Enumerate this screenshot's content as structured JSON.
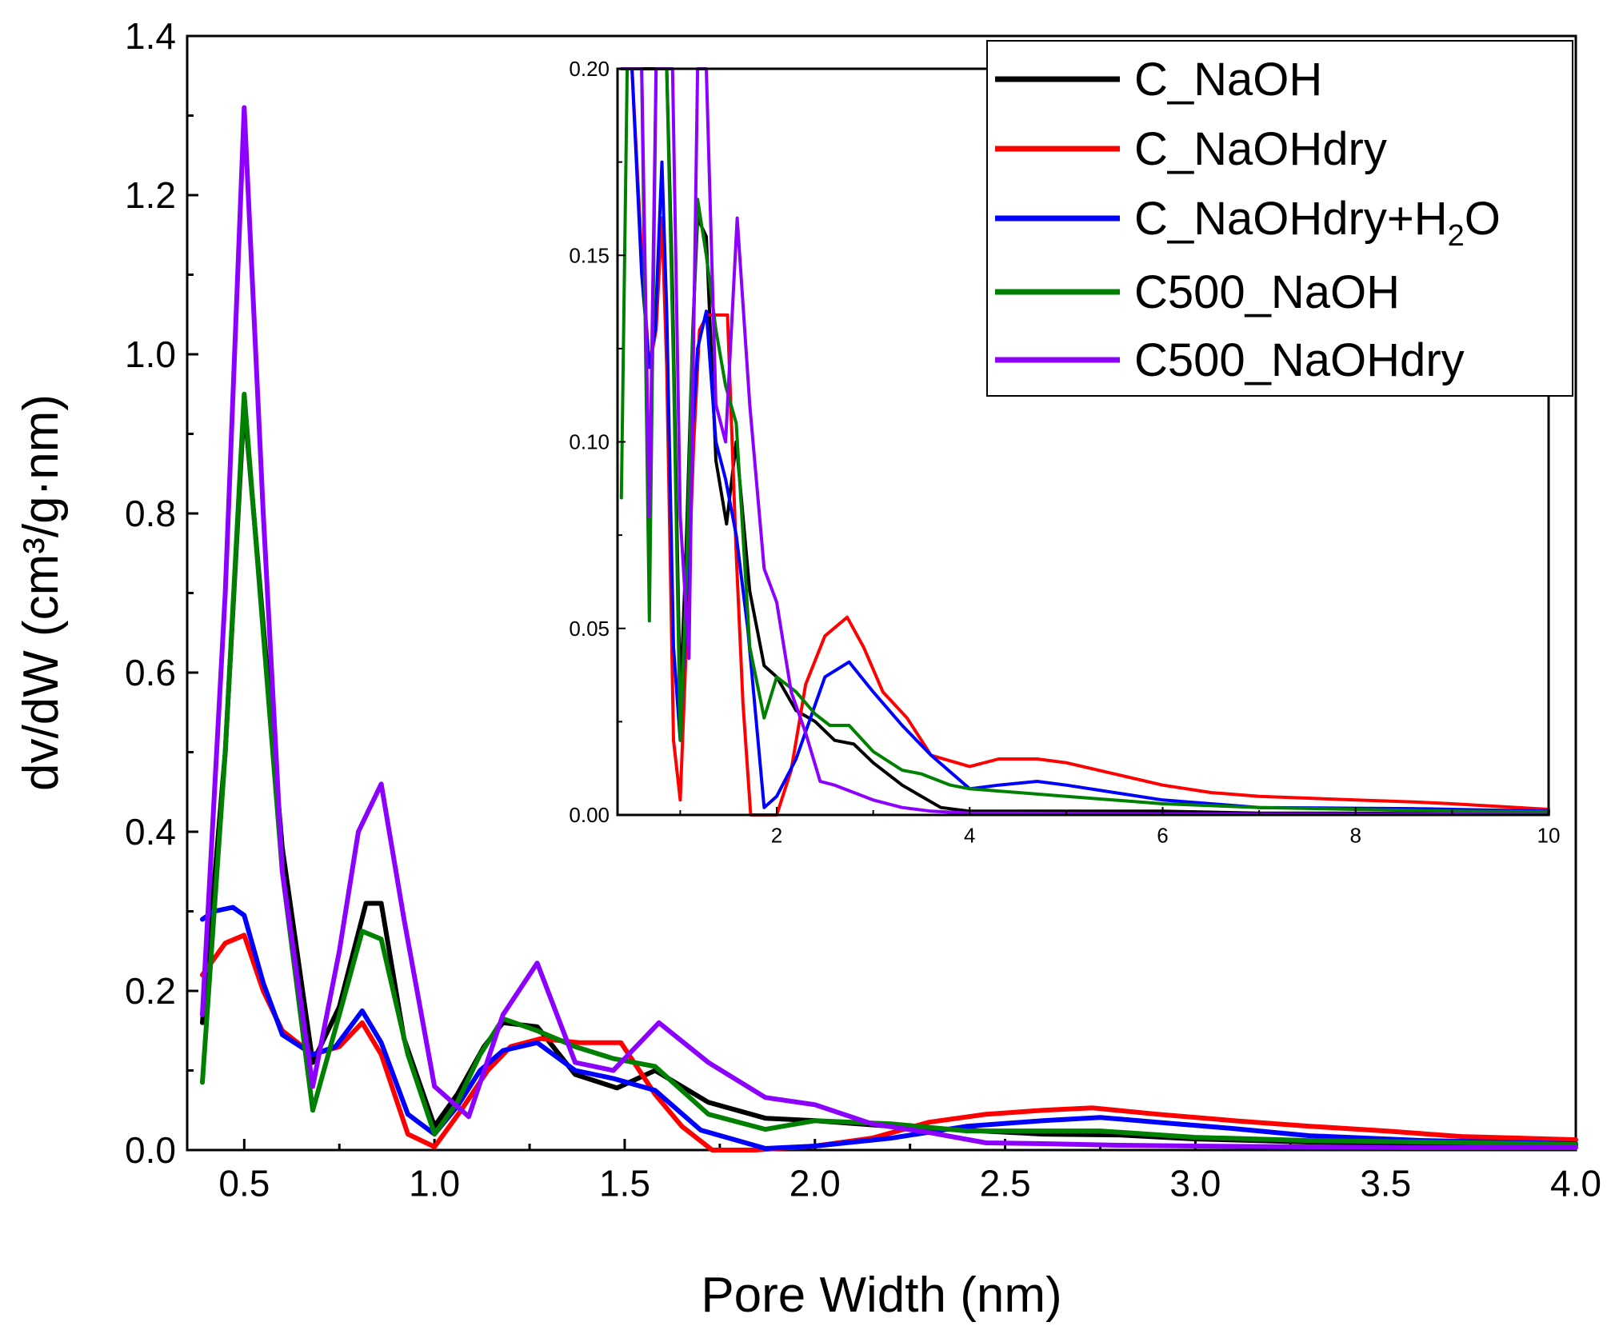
{
  "chart_data": [
    {
      "type": "line",
      "title": "",
      "xlabel": "Pore Width (nm)",
      "ylabel": "dv/dW (cm³/g·nm)",
      "xlim": [
        0.35,
        4.0
      ],
      "ylim": [
        0.0,
        1.4
      ],
      "xticks": [
        "0.5",
        "1.0",
        "1.5",
        "2.0",
        "2.5",
        "3.0",
        "3.5",
        "4.0"
      ],
      "yticks": [
        "0.0",
        "0.2",
        "0.4",
        "0.6",
        "0.8",
        "1.0",
        "1.2",
        "1.4"
      ],
      "legend_position": "top-right",
      "series": [
        {
          "name": "C_NaOH",
          "color": "#000000",
          "x": [
            0.39,
            0.45,
            0.5,
            0.55,
            0.6,
            0.68,
            0.75,
            0.82,
            0.86,
            0.92,
            1.0,
            1.06,
            1.13,
            1.18,
            1.27,
            1.37,
            1.48,
            1.58,
            1.72,
            1.87,
            2.0,
            2.2,
            2.4,
            2.6,
            2.8,
            3.0,
            3.3,
            3.6,
            4.0
          ],
          "y": [
            0.16,
            0.5,
            0.94,
            0.66,
            0.38,
            0.11,
            0.18,
            0.31,
            0.31,
            0.14,
            0.03,
            0.07,
            0.13,
            0.16,
            0.155,
            0.095,
            0.078,
            0.1,
            0.06,
            0.04,
            0.037,
            0.03,
            0.025,
            0.02,
            0.019,
            0.014,
            0.01,
            0.008,
            0.006
          ]
        },
        {
          "name": "C_NaOHdry",
          "color": "#ff0000",
          "x": [
            0.39,
            0.45,
            0.5,
            0.55,
            0.6,
            0.68,
            0.75,
            0.81,
            0.86,
            0.93,
            1.0,
            1.07,
            1.14,
            1.2,
            1.28,
            1.38,
            1.49,
            1.58,
            1.65,
            1.73,
            1.84,
            2.0,
            2.15,
            2.3,
            2.45,
            2.6,
            2.73,
            2.9,
            3.1,
            3.3,
            3.5,
            3.7,
            4.0
          ],
          "y": [
            0.22,
            0.26,
            0.27,
            0.2,
            0.15,
            0.12,
            0.13,
            0.16,
            0.12,
            0.02,
            0.004,
            0.05,
            0.1,
            0.13,
            0.14,
            0.135,
            0.135,
            0.07,
            0.03,
            0.0,
            0.0,
            0.005,
            0.015,
            0.035,
            0.045,
            0.05,
            0.053,
            0.045,
            0.037,
            0.03,
            0.024,
            0.017,
            0.013
          ]
        },
        {
          "name": "C_NaOHdry+H₂O",
          "color": "#0000ff",
          "x": [
            0.39,
            0.42,
            0.47,
            0.5,
            0.55,
            0.6,
            0.68,
            0.74,
            0.81,
            0.86,
            0.93,
            1.0,
            1.06,
            1.12,
            1.18,
            1.27,
            1.37,
            1.47,
            1.58,
            1.7,
            1.87,
            2.0,
            2.2,
            2.4,
            2.6,
            2.75,
            2.9,
            3.1,
            3.3,
            3.6,
            4.0
          ],
          "y": [
            0.29,
            0.3,
            0.305,
            0.295,
            0.21,
            0.145,
            0.12,
            0.13,
            0.175,
            0.135,
            0.045,
            0.02,
            0.055,
            0.1,
            0.125,
            0.135,
            0.1,
            0.09,
            0.075,
            0.025,
            0.002,
            0.005,
            0.015,
            0.03,
            0.037,
            0.041,
            0.035,
            0.027,
            0.018,
            0.012,
            0.008
          ]
        },
        {
          "name": "C500_NaOH",
          "color": "#008000",
          "x": [
            0.39,
            0.45,
            0.5,
            0.55,
            0.6,
            0.68,
            0.75,
            0.81,
            0.86,
            0.93,
            1.0,
            1.06,
            1.12,
            1.18,
            1.27,
            1.37,
            1.47,
            1.58,
            1.72,
            1.87,
            2.0,
            2.2,
            2.4,
            2.6,
            2.75,
            3.0,
            3.3,
            3.6,
            4.0
          ],
          "y": [
            0.085,
            0.5,
            0.95,
            0.65,
            0.35,
            0.05,
            0.17,
            0.275,
            0.265,
            0.12,
            0.02,
            0.06,
            0.12,
            0.165,
            0.15,
            0.13,
            0.115,
            0.105,
            0.045,
            0.026,
            0.037,
            0.033,
            0.024,
            0.024,
            0.024,
            0.016,
            0.012,
            0.01,
            0.007
          ]
        },
        {
          "name": "C500_NaOHdry",
          "color": "#8b00ff",
          "x": [
            0.39,
            0.45,
            0.5,
            0.55,
            0.6,
            0.68,
            0.75,
            0.8,
            0.86,
            0.92,
            1.0,
            1.09,
            1.18,
            1.27,
            1.37,
            1.47,
            1.59,
            1.72,
            1.87,
            2.0,
            2.15,
            2.3,
            2.45,
            2.6,
            2.8,
            3.0,
            3.3,
            3.6,
            4.0
          ],
          "y": [
            0.17,
            0.7,
            1.31,
            0.8,
            0.35,
            0.08,
            0.25,
            0.4,
            0.46,
            0.29,
            0.08,
            0.042,
            0.17,
            0.235,
            0.11,
            0.1,
            0.16,
            0.11,
            0.066,
            0.057,
            0.033,
            0.022,
            0.009,
            0.008,
            0.006,
            0.005,
            0.004,
            0.003,
            0.003
          ]
        }
      ]
    },
    {
      "type": "line",
      "title": "",
      "xlabel": "",
      "ylabel": "",
      "xlim": [
        0.35,
        10.0
      ],
      "ylim": [
        0.0,
        0.2
      ],
      "xticks": [
        "2",
        "4",
        "6",
        "8",
        "10"
      ],
      "yticks": [
        "0.00",
        "0.05",
        "0.10",
        "0.15",
        "0.20"
      ],
      "series": [
        {
          "name": "C_NaOH",
          "color": "#000000",
          "x": [
            0.39,
            0.5,
            0.6,
            0.68,
            0.75,
            0.82,
            0.86,
            0.92,
            1.0,
            1.06,
            1.13,
            1.18,
            1.27,
            1.37,
            1.48,
            1.58,
            1.72,
            1.87,
            2.0,
            2.2,
            2.4,
            2.6,
            2.8,
            3.0,
            3.3,
            3.7,
            4.0,
            5.0,
            6.0,
            7.0,
            8.0,
            9.0,
            10.0
          ],
          "y": [
            0.2,
            0.2,
            0.2,
            0.2,
            0.2,
            0.2,
            0.2,
            0.14,
            0.03,
            0.07,
            0.13,
            0.16,
            0.155,
            0.095,
            0.078,
            0.1,
            0.06,
            0.04,
            0.037,
            0.028,
            0.025,
            0.02,
            0.019,
            0.014,
            0.008,
            0.002,
            0.001,
            0.001,
            0.001,
            0.0005,
            0.0005,
            0.0003,
            0.0002
          ]
        },
        {
          "name": "C_NaOHdry",
          "color": "#ff0000",
          "x": [
            0.39,
            0.5,
            0.6,
            0.68,
            0.75,
            0.81,
            0.86,
            0.93,
            1.0,
            1.07,
            1.14,
            1.2,
            1.28,
            1.38,
            1.49,
            1.58,
            1.65,
            1.73,
            1.84,
            2.0,
            2.15,
            2.3,
            2.5,
            2.73,
            2.9,
            3.1,
            3.35,
            3.6,
            4.0,
            4.3,
            4.7,
            5.0,
            5.5,
            6.0,
            6.5,
            7.0,
            8.0,
            8.6,
            9.0,
            10.0
          ],
          "y": [
            0.2,
            0.2,
            0.15,
            0.12,
            0.13,
            0.16,
            0.12,
            0.02,
            0.004,
            0.05,
            0.1,
            0.13,
            0.134,
            0.134,
            0.134,
            0.07,
            0.03,
            0.0,
            0.0,
            0.0,
            0.012,
            0.035,
            0.048,
            0.053,
            0.045,
            0.033,
            0.026,
            0.016,
            0.013,
            0.015,
            0.015,
            0.014,
            0.011,
            0.008,
            0.006,
            0.005,
            0.004,
            0.0035,
            0.003,
            0.0015
          ]
        },
        {
          "name": "C_NaOHdry+H₂O",
          "color": "#0000ff",
          "x": [
            0.39,
            0.5,
            0.6,
            0.68,
            0.74,
            0.81,
            0.86,
            0.93,
            1.0,
            1.06,
            1.12,
            1.18,
            1.27,
            1.37,
            1.47,
            1.58,
            1.7,
            1.87,
            2.0,
            2.2,
            2.5,
            2.75,
            3.0,
            3.3,
            3.6,
            4.0,
            4.3,
            4.7,
            5.0,
            5.5,
            6.0,
            7.0,
            8.0,
            8.6,
            9.0,
            10.0
          ],
          "y": [
            0.2,
            0.2,
            0.145,
            0.12,
            0.13,
            0.175,
            0.135,
            0.045,
            0.02,
            0.055,
            0.1,
            0.125,
            0.135,
            0.1,
            0.09,
            0.075,
            0.05,
            0.002,
            0.005,
            0.015,
            0.037,
            0.041,
            0.033,
            0.024,
            0.016,
            0.007,
            0.008,
            0.009,
            0.008,
            0.006,
            0.004,
            0.002,
            0.0018,
            0.0017,
            0.0015,
            0.001
          ]
        },
        {
          "name": "C500_NaOH",
          "color": "#008000",
          "x": [
            0.39,
            0.45,
            0.5,
            0.6,
            0.68,
            0.75,
            0.81,
            0.86,
            0.93,
            1.0,
            1.06,
            1.12,
            1.18,
            1.27,
            1.37,
            1.47,
            1.58,
            1.72,
            1.87,
            2.0,
            2.2,
            2.4,
            2.55,
            2.75,
            3.0,
            3.3,
            3.5,
            3.8,
            4.0,
            5.0,
            6.0,
            7.0,
            8.0,
            9.0,
            10.0
          ],
          "y": [
            0.085,
            0.2,
            0.2,
            0.2,
            0.052,
            0.2,
            0.2,
            0.2,
            0.12,
            0.02,
            0.06,
            0.12,
            0.165,
            0.15,
            0.13,
            0.115,
            0.105,
            0.045,
            0.026,
            0.037,
            0.033,
            0.027,
            0.024,
            0.024,
            0.017,
            0.012,
            0.011,
            0.008,
            0.007,
            0.005,
            0.003,
            0.002,
            0.0015,
            0.001,
            0.0008
          ]
        },
        {
          "name": "C500_NaOHdry",
          "color": "#8b00ff",
          "x": [
            0.39,
            0.5,
            0.6,
            0.68,
            0.75,
            0.8,
            0.86,
            0.92,
            1.0,
            1.09,
            1.18,
            1.22,
            1.27,
            1.37,
            1.47,
            1.59,
            1.72,
            1.87,
            2.0,
            2.15,
            2.3,
            2.45,
            2.6,
            2.8,
            3.0,
            3.3,
            3.6,
            4.0,
            5.0,
            6.0,
            7.0,
            8.0,
            9.0,
            10.0
          ],
          "y": [
            0.2,
            0.2,
            0.2,
            0.08,
            0.2,
            0.2,
            0.2,
            0.2,
            0.08,
            0.042,
            0.2,
            0.2,
            0.2,
            0.11,
            0.1,
            0.16,
            0.11,
            0.066,
            0.057,
            0.033,
            0.022,
            0.009,
            0.008,
            0.006,
            0.004,
            0.002,
            0.001,
            0.0005,
            0.0004,
            0.0003,
            0.0002,
            0.0002,
            0.0002,
            0.0001
          ]
        }
      ]
    }
  ],
  "legend": {
    "items": [
      {
        "name": "C_NaOH",
        "color": "#000000"
      },
      {
        "name": "C_NaOHdry",
        "color": "#ff0000"
      },
      {
        "name_prefix": "C_NaOHdry+H",
        "name_sub": "2",
        "name_suffix": "O",
        "color": "#0000ff"
      },
      {
        "name": "C500_NaOH",
        "color": "#008000"
      },
      {
        "name": "C500_NaOHdry",
        "color": "#8b00ff"
      }
    ]
  }
}
